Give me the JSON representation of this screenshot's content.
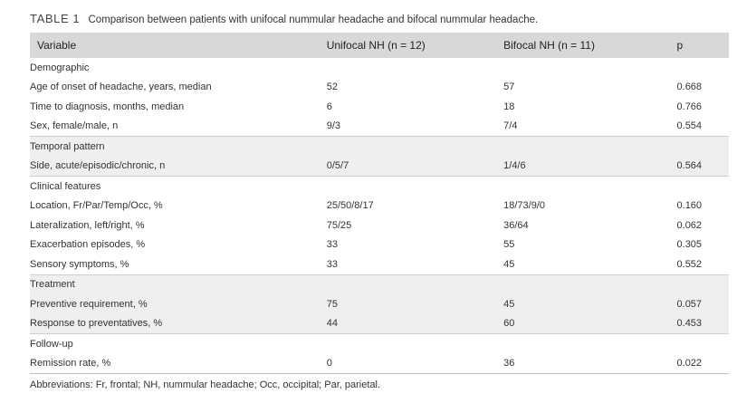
{
  "caption": {
    "label": "TABLE 1",
    "text": "Comparison between patients with unifocal nummular headache and bifocal nummular headache."
  },
  "headers": {
    "variable": "Variable",
    "unifocal": "Unifocal NH (n = 12)",
    "bifocal": "Bifocal NH (n = 11)",
    "p": "p"
  },
  "rows": [
    {
      "label": "Demographic"
    },
    {
      "label": "Age of onset of headache, years, median",
      "unifocal": "52",
      "bifocal": "57",
      "p": "0.668"
    },
    {
      "label": "Time to diagnosis, months, median",
      "unifocal": "6",
      "bifocal": "18",
      "p": "0.766"
    },
    {
      "label": "Sex, female/male, n",
      "unifocal": "9/3",
      "bifocal": "7/4",
      "p": "0.554"
    },
    {
      "label": "Temporal pattern"
    },
    {
      "label": "Side, acute/episodic/chronic, n",
      "unifocal": "0/5/7",
      "bifocal": "1/4/6",
      "p": "0.564"
    },
    {
      "label": "Clinical features"
    },
    {
      "label": "Location, Fr/Par/Temp/Occ, %",
      "unifocal": "25/50/8/17",
      "bifocal": "18/73/9/0",
      "p": "0.160"
    },
    {
      "label": "Lateralization, left/right, %",
      "unifocal": "75/25",
      "bifocal": "36/64",
      "p": "0.062"
    },
    {
      "label": "Exacerbation episodes, %",
      "unifocal": "33",
      "bifocal": "55",
      "p": "0.305"
    },
    {
      "label": "Sensory symptoms, %",
      "unifocal": "33",
      "bifocal": "45",
      "p": "0.552"
    },
    {
      "label": "Treatment"
    },
    {
      "label": "Preventive requirement, %",
      "unifocal": "75",
      "bifocal": "45",
      "p": "0.057"
    },
    {
      "label": "Response to preventatives, %",
      "unifocal": "44",
      "bifocal": "60",
      "p": "0.453"
    },
    {
      "label": "Follow-up"
    },
    {
      "label": "Remission rate, %",
      "unifocal": "0",
      "bifocal": "36",
      "p": "0.022"
    }
  ],
  "footnote": "Abbreviations: Fr, frontal; NH, nummular headache; Occ, occipital; Par, parietal."
}
